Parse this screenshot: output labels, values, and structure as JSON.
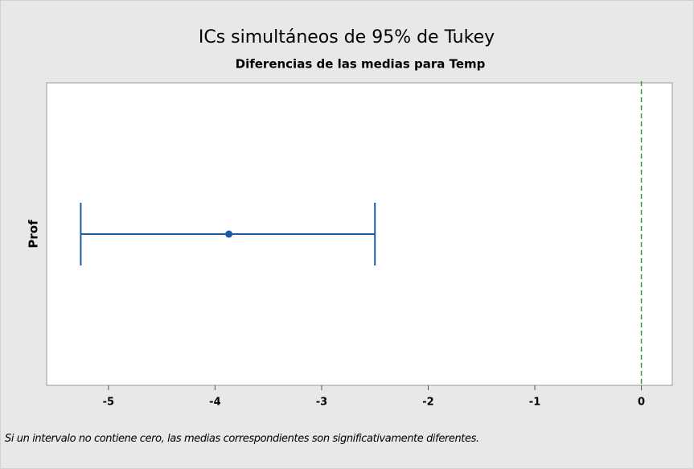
{
  "chart_data": {
    "type": "interval",
    "title": "ICs simultáneos de 95% de Tukey",
    "subtitle": "Diferencias de las medias para Temp",
    "categories": [
      "Prof"
    ],
    "values": [
      -3.87
    ],
    "lower": [
      -5.26
    ],
    "upper": [
      -2.5
    ],
    "color": "#1a5aa6",
    "xlim": [
      -5.58,
      0.29
    ],
    "xticks": [
      -5,
      -4,
      -3,
      -2,
      -1,
      0
    ],
    "reference_line": 0,
    "reference_color": "#2e9b3e",
    "note": "Si un intervalo no contiene cero, las medias correspondientes son significativamente diferentes."
  }
}
